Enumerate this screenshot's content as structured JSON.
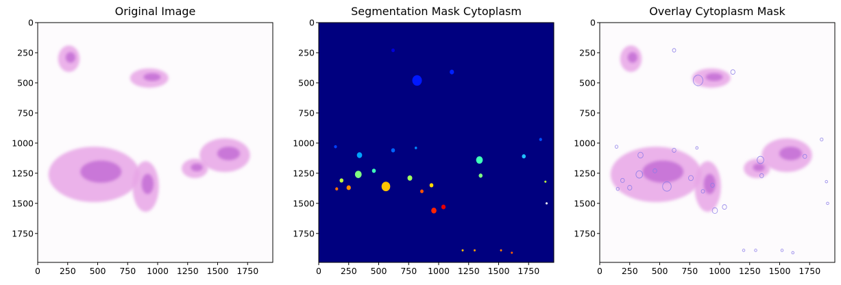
{
  "figure": {
    "panels": [
      {
        "id": "original",
        "title": "Original Image"
      },
      {
        "id": "mask",
        "title": "Segmentation Mask Cytoplasm"
      },
      {
        "id": "overlay",
        "title": "Overlay Cytoplasm Mask"
      }
    ]
  },
  "colors": {
    "mask_background": "#00007f",
    "tissue_pink": "#e8a6e6",
    "tissue_purple": "#b34fcc",
    "overlay_outline": "#8a7ae8"
  },
  "chart_data": [
    {
      "type": "heatmap",
      "title": "Original Image",
      "xlim": [
        0,
        1960
      ],
      "ylim": [
        1990,
        0
      ],
      "xticks": [
        0,
        250,
        500,
        750,
        1000,
        1250,
        1500,
        1750
      ],
      "yticks": [
        0,
        250,
        500,
        750,
        1000,
        1250,
        1500,
        1750
      ],
      "tissue_regions": [
        {
          "name": "upper-left fragment",
          "cx": 260,
          "cy": 300,
          "rx": 90,
          "ry": 110
        },
        {
          "name": "upper-right fragment",
          "cx": 930,
          "cy": 460,
          "rx": 160,
          "ry": 80
        },
        {
          "name": "lower-left fragment",
          "cx": 470,
          "cy": 1260,
          "rx": 380,
          "ry": 230
        },
        {
          "name": "lower-middle fragment",
          "cx": 900,
          "cy": 1360,
          "rx": 110,
          "ry": 210
        },
        {
          "name": "right fragment",
          "cx": 1560,
          "cy": 1100,
          "rx": 210,
          "ry": 140
        },
        {
          "name": "right small fragment",
          "cx": 1310,
          "cy": 1210,
          "rx": 110,
          "ry": 80
        }
      ]
    },
    {
      "type": "heatmap",
      "title": "Segmentation Mask Cytoplasm",
      "xlim": [
        0,
        1960
      ],
      "ylim": [
        1990,
        0
      ],
      "xticks": [
        0,
        250,
        500,
        750,
        1000,
        1250,
        1500,
        1750
      ],
      "yticks": [
        0,
        250,
        500,
        750,
        1000,
        1250,
        1500,
        1750
      ],
      "colormap": "jet",
      "blobs": [
        {
          "x": 620,
          "y": 230,
          "r": 14,
          "color": "#0000d8"
        },
        {
          "x": 820,
          "y": 480,
          "r": 40,
          "color": "#0018ff"
        },
        {
          "x": 1110,
          "y": 410,
          "r": 18,
          "color": "#0020ff"
        },
        {
          "x": 140,
          "y": 1030,
          "r": 12,
          "color": "#0040ff"
        },
        {
          "x": 340,
          "y": 1100,
          "r": 22,
          "color": "#00a4ff"
        },
        {
          "x": 620,
          "y": 1060,
          "r": 16,
          "color": "#0064ff"
        },
        {
          "x": 810,
          "y": 1040,
          "r": 10,
          "color": "#0088ff"
        },
        {
          "x": 460,
          "y": 1230,
          "r": 16,
          "color": "#40ffb8"
        },
        {
          "x": 330,
          "y": 1260,
          "r": 28,
          "color": "#80ff80"
        },
        {
          "x": 190,
          "y": 1310,
          "r": 16,
          "color": "#c0ff40"
        },
        {
          "x": 760,
          "y": 1290,
          "r": 20,
          "color": "#a0ff60"
        },
        {
          "x": 560,
          "y": 1360,
          "r": 36,
          "color": "#ffc400"
        },
        {
          "x": 940,
          "y": 1350,
          "r": 16,
          "color": "#ffd800"
        },
        {
          "x": 250,
          "y": 1370,
          "r": 18,
          "color": "#ff8c00"
        },
        {
          "x": 150,
          "y": 1380,
          "r": 12,
          "color": "#ff7000"
        },
        {
          "x": 860,
          "y": 1400,
          "r": 14,
          "color": "#ff5400"
        },
        {
          "x": 960,
          "y": 1560,
          "r": 22,
          "color": "#ff2400"
        },
        {
          "x": 1040,
          "y": 1530,
          "r": 18,
          "color": "#e80000"
        },
        {
          "x": 1340,
          "y": 1140,
          "r": 28,
          "color": "#40ffb8"
        },
        {
          "x": 1350,
          "y": 1270,
          "r": 16,
          "color": "#80ff80"
        },
        {
          "x": 1710,
          "y": 1110,
          "r": 16,
          "color": "#20c0ff"
        },
        {
          "x": 1850,
          "y": 970,
          "r": 12,
          "color": "#0050ff"
        },
        {
          "x": 1890,
          "y": 1320,
          "r": 8,
          "color": "#c0ff40"
        },
        {
          "x": 1900,
          "y": 1500,
          "r": 8,
          "color": "#ffffff"
        },
        {
          "x": 1200,
          "y": 1890,
          "r": 8,
          "color": "#ffc000"
        },
        {
          "x": 1300,
          "y": 1890,
          "r": 8,
          "color": "#ffa000"
        },
        {
          "x": 1520,
          "y": 1890,
          "r": 8,
          "color": "#ff8000"
        },
        {
          "x": 1610,
          "y": 1910,
          "r": 8,
          "color": "#ff6000"
        }
      ]
    },
    {
      "type": "heatmap",
      "title": "Overlay Cytoplasm Mask",
      "xlim": [
        0,
        1960
      ],
      "ylim": [
        1990,
        0
      ],
      "xticks": [
        0,
        250,
        500,
        750,
        1000,
        1250,
        1500,
        1750
      ],
      "yticks": [
        0,
        250,
        500,
        750,
        1000,
        1250,
        1500,
        1750
      ]
    }
  ]
}
